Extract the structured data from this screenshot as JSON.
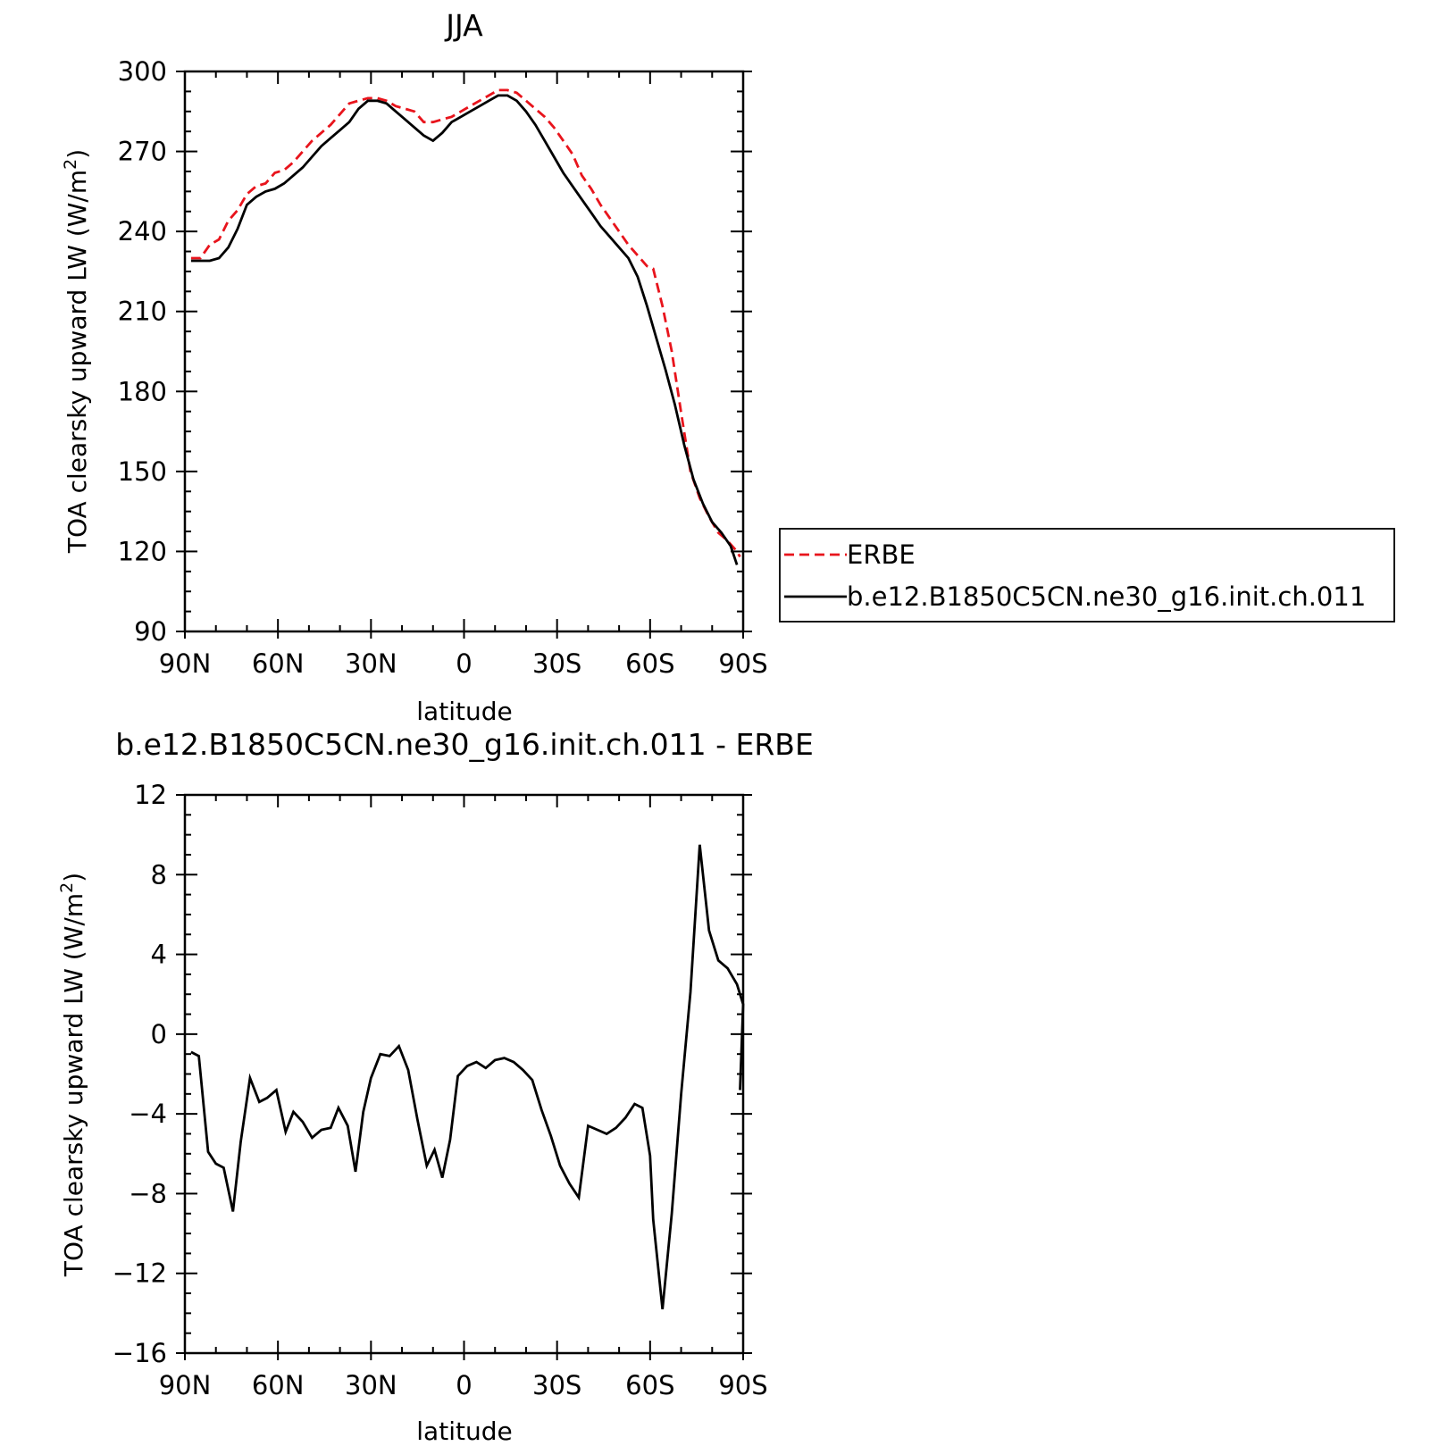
{
  "chart_data": [
    {
      "type": "line",
      "title": "JJA",
      "xlabel": "latitude",
      "ylabel": "TOA clearsky upward LW (W/m",
      "ylabel_sup": "2",
      "ylabel_tail": ")",
      "xlim": [
        90,
        -90
      ],
      "ylim": [
        90,
        300
      ],
      "x_ticks": [
        {
          "value": 90,
          "label": "90N"
        },
        {
          "value": 60,
          "label": "60N"
        },
        {
          "value": 30,
          "label": "30N"
        },
        {
          "value": 0,
          "label": "0"
        },
        {
          "value": -30,
          "label": "30S"
        },
        {
          "value": -60,
          "label": "60S"
        },
        {
          "value": -90,
          "label": "90S"
        }
      ],
      "y_ticks": [
        {
          "value": 90,
          "label": "90"
        },
        {
          "value": 120,
          "label": "120"
        },
        {
          "value": 150,
          "label": "150"
        },
        {
          "value": 180,
          "label": "180"
        },
        {
          "value": 210,
          "label": "210"
        },
        {
          "value": 240,
          "label": "240"
        },
        {
          "value": 270,
          "label": "270"
        },
        {
          "value": 300,
          "label": "300"
        }
      ],
      "legend_position": "right",
      "series": [
        {
          "name": "ERBE",
          "color": "#e8141c",
          "dash": "dashed",
          "points": [
            [
              88,
              230
            ],
            [
              85,
              230
            ],
            [
              82,
              235
            ],
            [
              79,
              237
            ],
            [
              76,
              244
            ],
            [
              73,
              248
            ],
            [
              70,
              254
            ],
            [
              67,
              257
            ],
            [
              64,
              258
            ],
            [
              61,
              262
            ],
            [
              58,
              263
            ],
            [
              55,
              266
            ],
            [
              52,
              270
            ],
            [
              49,
              274
            ],
            [
              46,
              277
            ],
            [
              43,
              280
            ],
            [
              40,
              284
            ],
            [
              37,
              288
            ],
            [
              34,
              289
            ],
            [
              31,
              290
            ],
            [
              28,
              290
            ],
            [
              25,
              289
            ],
            [
              22,
              287
            ],
            [
              19,
              286
            ],
            [
              16,
              285
            ],
            [
              13,
              281
            ],
            [
              10,
              281
            ],
            [
              7,
              282
            ],
            [
              4,
              283
            ],
            [
              1,
              285
            ],
            [
              -2,
              287
            ],
            [
              -5,
              289
            ],
            [
              -8,
              291
            ],
            [
              -11,
              293
            ],
            [
              -14,
              293
            ],
            [
              -17,
              292
            ],
            [
              -20,
              289
            ],
            [
              -23,
              286
            ],
            [
              -26,
              283
            ],
            [
              -29,
              279
            ],
            [
              -32,
              274
            ],
            [
              -35,
              269
            ],
            [
              -38,
              261
            ],
            [
              -41,
              256
            ],
            [
              -44,
              250
            ],
            [
              -47,
              245
            ],
            [
              -50,
              240
            ],
            [
              -53,
              235
            ],
            [
              -56,
              231
            ],
            [
              -59,
              227
            ],
            [
              -61,
              226
            ],
            [
              -64,
              212
            ],
            [
              -67,
              195
            ],
            [
              -70,
              172
            ],
            [
              -73,
              150
            ],
            [
              -76,
              140
            ],
            [
              -79,
              133
            ],
            [
              -82,
              127
            ],
            [
              -85,
              124
            ],
            [
              -88,
              120
            ],
            [
              -89,
              118
            ]
          ]
        },
        {
          "name": "b.e12.B1850C5CN.ne30_g16.init.ch.011",
          "color": "#000000",
          "dash": "solid",
          "points": [
            [
              88,
              229
            ],
            [
              85,
              229
            ],
            [
              82,
              229
            ],
            [
              79,
              230
            ],
            [
              76,
              234
            ],
            [
              73,
              241
            ],
            [
              70,
              250
            ],
            [
              67,
              253
            ],
            [
              64,
              255
            ],
            [
              61,
              256
            ],
            [
              58,
              258
            ],
            [
              55,
              261
            ],
            [
              52,
              264
            ],
            [
              49,
              268
            ],
            [
              46,
              272
            ],
            [
              43,
              275
            ],
            [
              40,
              278
            ],
            [
              37,
              281
            ],
            [
              34,
              286
            ],
            [
              31,
              289
            ],
            [
              28,
              289
            ],
            [
              25,
              288
            ],
            [
              22,
              285
            ],
            [
              19,
              282
            ],
            [
              16,
              279
            ],
            [
              13,
              276
            ],
            [
              10,
              274
            ],
            [
              7,
              277
            ],
            [
              4,
              281
            ],
            [
              1,
              283
            ],
            [
              -2,
              285
            ],
            [
              -5,
              287
            ],
            [
              -8,
              289
            ],
            [
              -11,
              291
            ],
            [
              -14,
              291
            ],
            [
              -17,
              289
            ],
            [
              -20,
              285
            ],
            [
              -23,
              280
            ],
            [
              -26,
              274
            ],
            [
              -29,
              268
            ],
            [
              -32,
              262
            ],
            [
              -35,
              257
            ],
            [
              -38,
              252
            ],
            [
              -41,
              247
            ],
            [
              -44,
              242
            ],
            [
              -47,
              238
            ],
            [
              -50,
              234
            ],
            [
              -53,
              230
            ],
            [
              -56,
              223
            ],
            [
              -59,
              212
            ],
            [
              -62,
              200
            ],
            [
              -65,
              188
            ],
            [
              -68,
              175
            ],
            [
              -71,
              160
            ],
            [
              -74,
              147
            ],
            [
              -77,
              138
            ],
            [
              -80,
              131
            ],
            [
              -83,
              127
            ],
            [
              -86,
              122
            ],
            [
              -88,
              115
            ]
          ]
        }
      ]
    },
    {
      "type": "line",
      "title": "b.e12.B1850C5CN.ne30_g16.init.ch.011 - ERBE",
      "xlabel": "latitude",
      "ylabel": "TOA clearsky upward LW (W/m",
      "ylabel_sup": "2",
      "ylabel_tail": ")",
      "xlim": [
        90,
        -90
      ],
      "ylim": [
        -16,
        12
      ],
      "x_ticks": [
        {
          "value": 90,
          "label": "90N"
        },
        {
          "value": 60,
          "label": "60N"
        },
        {
          "value": 30,
          "label": "30N"
        },
        {
          "value": 0,
          "label": "0"
        },
        {
          "value": -30,
          "label": "30S"
        },
        {
          "value": -60,
          "label": "60S"
        },
        {
          "value": -90,
          "label": "90S"
        }
      ],
      "y_ticks": [
        {
          "value": -16,
          "label": "−16"
        },
        {
          "value": -12,
          "label": "−12"
        },
        {
          "value": -8,
          "label": "−8"
        },
        {
          "value": -4,
          "label": "−4"
        },
        {
          "value": 0,
          "label": "0"
        },
        {
          "value": 4,
          "label": "4"
        },
        {
          "value": 8,
          "label": "8"
        },
        {
          "value": 12,
          "label": "12"
        }
      ],
      "series": [
        {
          "color": "#000000",
          "dash": "solid",
          "points": [
            [
              88,
              -0.9
            ],
            [
              85.5,
              -1.1
            ],
            [
              82.5,
              -5.9
            ],
            [
              80,
              -6.5
            ],
            [
              77.5,
              -6.7
            ],
            [
              74.5,
              -8.9
            ],
            [
              72,
              -5.4
            ],
            [
              69,
              -2.2
            ],
            [
              66,
              -3.4
            ],
            [
              63.5,
              -3.2
            ],
            [
              60.5,
              -2.8
            ],
            [
              57.5,
              -4.9
            ],
            [
              55,
              -3.9
            ],
            [
              52,
              -4.4
            ],
            [
              49,
              -5.2
            ],
            [
              46,
              -4.8
            ],
            [
              43,
              -4.7
            ],
            [
              40.5,
              -3.7
            ],
            [
              37.5,
              -4.6
            ],
            [
              35,
              -6.9
            ],
            [
              32.5,
              -3.9
            ],
            [
              30,
              -2.2
            ],
            [
              27,
              -1.0
            ],
            [
              24,
              -1.1
            ],
            [
              21,
              -0.6
            ],
            [
              18,
              -1.8
            ],
            [
              15,
              -4.3
            ],
            [
              12,
              -6.6
            ],
            [
              9.5,
              -5.8
            ],
            [
              7,
              -7.2
            ],
            [
              4.5,
              -5.3
            ],
            [
              2,
              -2.1
            ],
            [
              -1,
              -1.6
            ],
            [
              -4,
              -1.4
            ],
            [
              -7,
              -1.7
            ],
            [
              -10,
              -1.3
            ],
            [
              -13,
              -1.2
            ],
            [
              -16,
              -1.4
            ],
            [
              -19,
              -1.8
            ],
            [
              -22,
              -2.3
            ],
            [
              -25,
              -3.8
            ],
            [
              -28,
              -5.1
            ],
            [
              -31,
              -6.6
            ],
            [
              -34,
              -7.5
            ],
            [
              -37,
              -8.2
            ],
            [
              -40,
              -4.6
            ],
            [
              -43,
              -4.8
            ],
            [
              -46,
              -5.0
            ],
            [
              -49,
              -4.7
            ],
            [
              -52,
              -4.2
            ],
            [
              -55,
              -3.5
            ],
            [
              -57.5,
              -3.7
            ],
            [
              -60,
              -6.1
            ],
            [
              -61,
              -9.3
            ],
            [
              -64,
              -13.8
            ],
            [
              -67,
              -9.0
            ],
            [
              -70,
              -3.0
            ],
            [
              -73,
              2.1
            ],
            [
              -76,
              9.5
            ],
            [
              -79,
              5.2
            ],
            [
              -82,
              3.7
            ],
            [
              -85,
              3.3
            ],
            [
              -88,
              2.5
            ],
            [
              -90,
              1.5
            ],
            [
              -89,
              -2.8
            ]
          ]
        }
      ]
    }
  ]
}
